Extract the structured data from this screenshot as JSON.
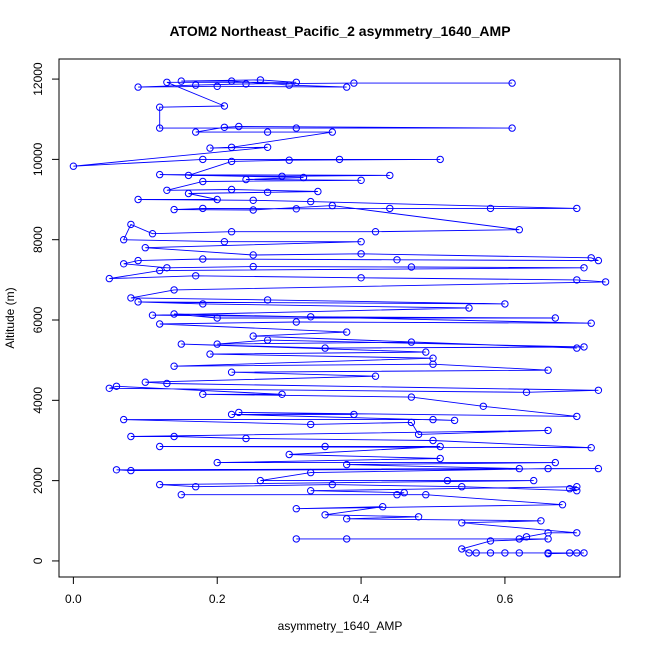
{
  "chart_data": {
    "type": "line",
    "title": "ATOM2 Northeast_Pacific_2 asymmetry_1640_AMP",
    "xlabel": "asymmetry_1640_AMP",
    "ylabel": "Altitude (m)",
    "xlim": [
      -0.02,
      0.76
    ],
    "ylim": [
      -400,
      12500
    ],
    "xticks": [
      0.0,
      0.2,
      0.4,
      0.6
    ],
    "xtick_labels": [
      "0.0",
      "0.2",
      "0.4",
      "0.6"
    ],
    "yticks": [
      0,
      2000,
      4000,
      6000,
      8000,
      10000,
      12000
    ],
    "ytick_labels": [
      "0",
      "2000",
      "4000",
      "6000",
      "8000",
      "10000",
      "12000"
    ],
    "grid": false,
    "series": [
      {
        "color": "#0000ff",
        "marker": "open-circle",
        "points": [
          [
            0.61,
            11900
          ],
          [
            0.39,
            11900
          ],
          [
            0.24,
            11880
          ],
          [
            0.17,
            11850
          ],
          [
            0.09,
            11800
          ],
          [
            0.2,
            11820
          ],
          [
            0.38,
            11800
          ],
          [
            0.3,
            11850
          ],
          [
            0.22,
            11950
          ],
          [
            0.15,
            11950
          ],
          [
            0.26,
            11980
          ],
          [
            0.31,
            11920
          ],
          [
            0.13,
            11920
          ],
          [
            0.21,
            11330
          ],
          [
            0.12,
            11300
          ],
          [
            0.12,
            10780
          ],
          [
            0.31,
            10780
          ],
          [
            0.61,
            10780
          ],
          [
            0.23,
            10820
          ],
          [
            0.21,
            10800
          ],
          [
            0.17,
            10680
          ],
          [
            0.27,
            10680
          ],
          [
            0.36,
            10680
          ],
          [
            0.22,
            10300
          ],
          [
            0.19,
            10280
          ],
          [
            0.27,
            10300
          ],
          [
            0.0,
            9830
          ],
          [
            0.18,
            10000
          ],
          [
            0.37,
            10000
          ],
          [
            0.51,
            10000
          ],
          [
            0.3,
            9980
          ],
          [
            0.22,
            9950
          ],
          [
            0.16,
            9600
          ],
          [
            0.29,
            9580
          ],
          [
            0.44,
            9600
          ],
          [
            0.12,
            9620
          ],
          [
            0.32,
            9550
          ],
          [
            0.24,
            9500
          ],
          [
            0.4,
            9480
          ],
          [
            0.18,
            9450
          ],
          [
            0.13,
            9230
          ],
          [
            0.22,
            9250
          ],
          [
            0.34,
            9200
          ],
          [
            0.27,
            9180
          ],
          [
            0.16,
            9150
          ],
          [
            0.2,
            9000
          ],
          [
            0.09,
            9000
          ],
          [
            0.25,
            8980
          ],
          [
            0.33,
            8950
          ],
          [
            0.7,
            8780
          ],
          [
            0.58,
            8780
          ],
          [
            0.44,
            8780
          ],
          [
            0.31,
            8770
          ],
          [
            0.18,
            8780
          ],
          [
            0.14,
            8750
          ],
          [
            0.25,
            8740
          ],
          [
            0.36,
            8850
          ],
          [
            0.62,
            8250
          ],
          [
            0.42,
            8200
          ],
          [
            0.22,
            8200
          ],
          [
            0.11,
            8150
          ],
          [
            0.08,
            8380
          ],
          [
            0.07,
            8000
          ],
          [
            0.21,
            7950
          ],
          [
            0.4,
            7950
          ],
          [
            0.1,
            7800
          ],
          [
            0.25,
            7620
          ],
          [
            0.4,
            7650
          ],
          [
            0.72,
            7550
          ],
          [
            0.73,
            7480
          ],
          [
            0.45,
            7500
          ],
          [
            0.18,
            7520
          ],
          [
            0.09,
            7480
          ],
          [
            0.07,
            7400
          ],
          [
            0.13,
            7300
          ],
          [
            0.25,
            7330
          ],
          [
            0.47,
            7320
          ],
          [
            0.71,
            7300
          ],
          [
            0.12,
            7230
          ],
          [
            0.05,
            7030
          ],
          [
            0.17,
            7100
          ],
          [
            0.4,
            7050
          ],
          [
            0.7,
            7000
          ],
          [
            0.74,
            6950
          ],
          [
            0.14,
            6750
          ],
          [
            0.08,
            6550
          ],
          [
            0.27,
            6500
          ],
          [
            0.6,
            6400
          ],
          [
            0.09,
            6450
          ],
          [
            0.18,
            6400
          ],
          [
            0.55,
            6300
          ],
          [
            0.11,
            6120
          ],
          [
            0.33,
            6080
          ],
          [
            0.67,
            6050
          ],
          [
            0.2,
            6050
          ],
          [
            0.14,
            6150
          ],
          [
            0.72,
            5920
          ],
          [
            0.31,
            5950
          ],
          [
            0.12,
            5900
          ],
          [
            0.38,
            5700
          ],
          [
            0.25,
            5600
          ],
          [
            0.7,
            5300
          ],
          [
            0.47,
            5450
          ],
          [
            0.2,
            5400
          ],
          [
            0.27,
            5500
          ],
          [
            0.71,
            5330
          ],
          [
            0.35,
            5300
          ],
          [
            0.15,
            5400
          ],
          [
            0.49,
            5200
          ],
          [
            0.19,
            5150
          ],
          [
            0.5,
            5050
          ],
          [
            0.14,
            4850
          ],
          [
            0.5,
            4900
          ],
          [
            0.66,
            4750
          ],
          [
            0.22,
            4700
          ],
          [
            0.42,
            4600
          ],
          [
            0.1,
            4450
          ],
          [
            0.13,
            4420
          ],
          [
            0.73,
            4250
          ],
          [
            0.63,
            4200
          ],
          [
            0.05,
            4300
          ],
          [
            0.06,
            4350
          ],
          [
            0.29,
            4150
          ],
          [
            0.18,
            4150
          ],
          [
            0.47,
            4080
          ],
          [
            0.57,
            3850
          ],
          [
            0.7,
            3600
          ],
          [
            0.23,
            3700
          ],
          [
            0.39,
            3650
          ],
          [
            0.22,
            3650
          ],
          [
            0.53,
            3500
          ],
          [
            0.5,
            3520
          ],
          [
            0.07,
            3520
          ],
          [
            0.33,
            3400
          ],
          [
            0.47,
            3450
          ],
          [
            0.48,
            3150
          ],
          [
            0.66,
            3250
          ],
          [
            0.08,
            3100
          ],
          [
            0.14,
            3100
          ],
          [
            0.24,
            3050
          ],
          [
            0.5,
            3000
          ],
          [
            0.72,
            2820
          ],
          [
            0.12,
            2850
          ],
          [
            0.35,
            2850
          ],
          [
            0.51,
            2850
          ],
          [
            0.3,
            2650
          ],
          [
            0.51,
            2550
          ],
          [
            0.2,
            2450
          ],
          [
            0.67,
            2450
          ],
          [
            0.38,
            2400
          ],
          [
            0.62,
            2300
          ],
          [
            0.06,
            2270
          ],
          [
            0.08,
            2250
          ],
          [
            0.73,
            2300
          ],
          [
            0.66,
            2300
          ],
          [
            0.33,
            2200
          ],
          [
            0.26,
            2000
          ],
          [
            0.52,
            2000
          ],
          [
            0.64,
            2000
          ],
          [
            0.12,
            1900
          ],
          [
            0.17,
            1850
          ],
          [
            0.36,
            1900
          ],
          [
            0.54,
            1850
          ],
          [
            0.7,
            1750
          ],
          [
            0.69,
            1800
          ],
          [
            0.7,
            1850
          ],
          [
            0.33,
            1750
          ],
          [
            0.46,
            1700
          ],
          [
            0.45,
            1650
          ],
          [
            0.15,
            1650
          ],
          [
            0.49,
            1650
          ],
          [
            0.68,
            1400
          ],
          [
            0.31,
            1300
          ],
          [
            0.43,
            1350
          ],
          [
            0.35,
            1150
          ],
          [
            0.48,
            1100
          ],
          [
            0.38,
            1050
          ],
          [
            0.65,
            1000
          ],
          [
            0.54,
            950
          ],
          [
            0.7,
            700
          ],
          [
            0.66,
            700
          ],
          [
            0.63,
            600
          ],
          [
            0.62,
            550
          ],
          [
            0.31,
            550
          ],
          [
            0.38,
            550
          ],
          [
            0.66,
            550
          ],
          [
            0.58,
            500
          ],
          [
            0.54,
            300
          ],
          [
            0.55,
            200
          ],
          [
            0.56,
            200
          ],
          [
            0.58,
            200
          ],
          [
            0.6,
            200
          ],
          [
            0.62,
            200
          ],
          [
            0.66,
            200
          ],
          [
            0.69,
            200
          ],
          [
            0.7,
            200
          ],
          [
            0.71,
            200
          ],
          [
            0.66,
            180
          ]
        ]
      }
    ]
  }
}
